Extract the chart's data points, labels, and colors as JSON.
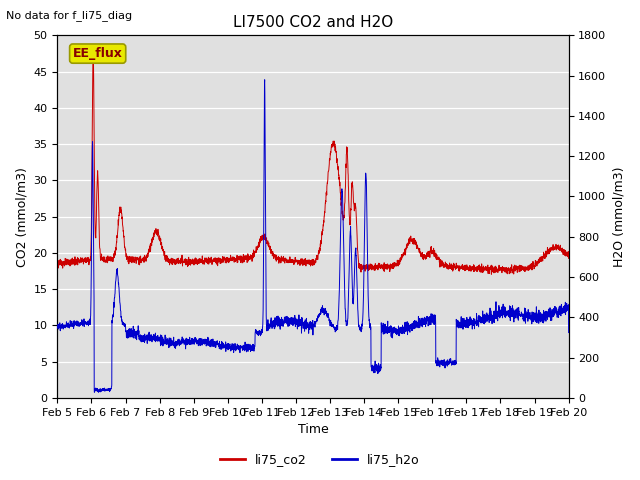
{
  "title": "LI7500 CO2 and H2O",
  "top_left_text": "No data for f_li75_diag",
  "xlabel": "Time",
  "ylabel_left": "CO2 (mmol/m3)",
  "ylabel_right": "H2O (mmol/m3)",
  "ylim_left": [
    0,
    50
  ],
  "ylim_right": [
    0,
    1800
  ],
  "yticks_left": [
    0,
    5,
    10,
    15,
    20,
    25,
    30,
    35,
    40,
    45,
    50
  ],
  "yticks_right": [
    0,
    200,
    400,
    600,
    800,
    1000,
    1200,
    1400,
    1600,
    1800
  ],
  "xtick_labels": [
    "Feb 5",
    "Feb 6",
    "Feb 7",
    "Feb 8",
    "Feb 9",
    "Feb 10",
    "Feb 11",
    "Feb 12",
    "Feb 13",
    "Feb 14",
    "Feb 15",
    "Feb 16",
    "Feb 17",
    "Feb 18",
    "Feb 19",
    "Feb 20"
  ],
  "co2_color": "#cc0000",
  "h2o_color": "#0000cc",
  "background_color": "#e0e0e0",
  "ee_flux_box_color": "#e8e800",
  "ee_flux_text": "EE_flux",
  "legend_labels": [
    "li75_co2",
    "li75_h2o"
  ],
  "title_fontsize": 11,
  "axis_label_fontsize": 9,
  "tick_fontsize": 8
}
